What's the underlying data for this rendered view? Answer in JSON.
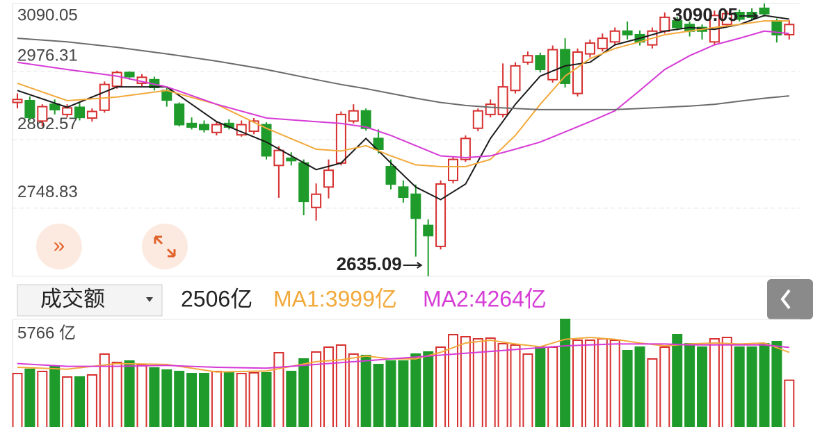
{
  "toolbar": {
    "selector": "成交额",
    "current": "2506亿",
    "ma1": "MA1:3999亿",
    "ma2": "MA2:4264亿",
    "ma1_color": "#f2a93b",
    "ma2_color": "#d63bd6"
  },
  "chart_data": [
    {
      "type": "candlestick",
      "up_color": "#d6302f",
      "down_color": "#1f9b2b",
      "grid": true,
      "ylim": [
        2635.09,
        3090.05
      ],
      "yticks": [
        3090.05,
        2976.31,
        2862.57,
        2748.83
      ],
      "open": [
        2925,
        2928,
        2894,
        2922,
        2905,
        2917,
        2899,
        2912,
        2952,
        2975,
        2957,
        2963,
        2945,
        2922,
        2890,
        2888,
        2875,
        2890,
        2871,
        2877,
        2888,
        2820,
        2832,
        2824,
        2750,
        2784,
        2824,
        2894,
        2911,
        2865,
        2818,
        2784,
        2772,
        2720,
        2685,
        2795,
        2830,
        2882,
        2905,
        2905,
        2945,
        2992,
        3003,
        2963,
        3013,
        2940,
        3006,
        3015,
        3026,
        3044,
        3038,
        3021,
        3044,
        3061,
        3055,
        3050,
        3026,
        3055,
        3075,
        3075,
        3082,
        3061,
        3038
      ],
      "close": [
        2930,
        2900,
        2918,
        2913,
        2916,
        2900,
        2910,
        2955,
        2975,
        2968,
        2967,
        2950,
        2929,
        2888,
        2884,
        2880,
        2888,
        2884,
        2888,
        2894,
        2836,
        2845,
        2828,
        2760,
        2772,
        2812,
        2905,
        2911,
        2882,
        2847,
        2789,
        2767,
        2732,
        2703,
        2789,
        2830,
        2865,
        2911,
        2922,
        2951,
        2986,
        3003,
        2980,
        3013,
        2957,
        3009,
        3024,
        3032,
        3044,
        3038,
        3026,
        3044,
        3067,
        3050,
        3044,
        3044,
        3070,
        3073,
        3064,
        3067,
        3073,
        3038,
        3055
      ],
      "high": [
        2940,
        2935,
        2922,
        2930,
        2922,
        2924,
        2915,
        2960,
        2978,
        2977,
        2972,
        2968,
        2950,
        2925,
        2900,
        2895,
        2893,
        2897,
        2895,
        2899,
        2892,
        2852,
        2842,
        2830,
        2790,
        2830,
        2910,
        2922,
        2915,
        2880,
        2830,
        2795,
        2788,
        2730,
        2795,
        2835,
        2870,
        2915,
        2930,
        2990,
        2992,
        3010,
        3008,
        3020,
        3032,
        3015,
        3030,
        3040,
        3050,
        3060,
        3045,
        3050,
        3075,
        3068,
        3060,
        3055,
        3078,
        3078,
        3080,
        3082,
        3090.05,
        3065,
        3062
      ],
      "low": [
        2915,
        2895,
        2885,
        2905,
        2900,
        2895,
        2893,
        2908,
        2948,
        2963,
        2952,
        2945,
        2918,
        2885,
        2880,
        2875,
        2870,
        2880,
        2868,
        2872,
        2830,
        2766,
        2820,
        2737,
        2728,
        2765,
        2820,
        2890,
        2878,
        2840,
        2780,
        2758,
        2668,
        2635.09,
        2680,
        2790,
        2826,
        2877,
        2900,
        2900,
        2940,
        2988,
        2975,
        2958,
        2950,
        2935,
        3000,
        3010,
        3020,
        3030,
        3020,
        3015,
        3040,
        3045,
        3035,
        3030,
        3020,
        3050,
        3060,
        3062,
        3068,
        3025,
        3030
      ],
      "ma": [
        {
          "color": "#1a1a1a",
          "x": [
            0,
            4,
            8,
            12,
            16,
            20,
            24,
            26,
            28,
            30,
            32,
            34,
            36,
            38,
            40,
            42,
            44,
            46,
            48,
            50,
            52,
            54,
            56,
            58,
            60,
            62
          ],
          "values": [
            2945,
            2917,
            2951,
            2951,
            2893,
            2859,
            2813,
            2824,
            2865,
            2824,
            2784,
            2763,
            2789,
            2865,
            2922,
            2969,
            2986,
            2992,
            3021,
            3032,
            3044,
            3050,
            3047,
            3055,
            3070,
            3064
          ]
        },
        {
          "color": "#f2a93b",
          "x": [
            0,
            4,
            8,
            12,
            16,
            20,
            24,
            26,
            28,
            30,
            32,
            34,
            36,
            38,
            40,
            42,
            44,
            46,
            48,
            50,
            52,
            54,
            56,
            58,
            60,
            62
          ],
          "values": [
            2957,
            2928,
            2934,
            2945,
            2922,
            2882,
            2847,
            2844,
            2853,
            2836,
            2821,
            2818,
            2818,
            2830,
            2870,
            2922,
            2969,
            2998,
            3015,
            3026,
            3038,
            3044,
            3050,
            3055,
            3061,
            3061
          ]
        },
        {
          "color": "#d63bd6",
          "x": [
            0,
            4,
            8,
            12,
            16,
            20,
            24,
            26,
            28,
            30,
            32,
            34,
            36,
            38,
            40,
            42,
            44,
            46,
            48,
            50,
            52,
            54,
            56,
            58,
            60,
            62
          ],
          "values": [
            2992,
            2980,
            2969,
            2951,
            2922,
            2899,
            2893,
            2890,
            2884,
            2870,
            2853,
            2836,
            2833,
            2836,
            2847,
            2859,
            2876,
            2893,
            2911,
            2945,
            2980,
            3003,
            3021,
            3032,
            3044,
            3040
          ]
        },
        {
          "color": "#6b6b6b",
          "x": [
            0,
            4,
            8,
            12,
            16,
            20,
            24,
            26,
            28,
            30,
            32,
            34,
            36,
            38,
            40,
            42,
            44,
            46,
            48,
            50,
            52,
            54,
            56,
            58,
            60,
            62
          ],
          "values": [
            3032,
            3026,
            3017,
            3006,
            2994,
            2980,
            2963,
            2955,
            2948,
            2940,
            2932,
            2925,
            2920,
            2917,
            2915,
            2913,
            2913,
            2913,
            2913,
            2915,
            2917,
            2919,
            2922,
            2927,
            2932,
            2936
          ]
        }
      ],
      "annotations": [
        {
          "label": "3090.05",
          "value": 3090.05
        },
        {
          "label": "2635.09",
          "value": 2635.09
        }
      ]
    },
    {
      "type": "volume",
      "ylim": [
        0,
        5766
      ],
      "yticks": [
        {
          "value": 5766,
          "label": "5766 亿"
        }
      ],
      "values": [
        2864,
        3088,
        2976,
        3236,
        2678,
        2678,
        2790,
        3906,
        3460,
        3534,
        3348,
        3162,
        3050,
        2976,
        2864,
        2864,
        2976,
        2902,
        2864,
        2902,
        2902,
        3980,
        2976,
        3646,
        4018,
        4278,
        4390,
        3906,
        3832,
        3348,
        3534,
        3534,
        3906,
        4018,
        4278,
        4948,
        4836,
        4724,
        4762,
        4464,
        4390,
        3906,
        4278,
        4278,
        5766,
        4650,
        4650,
        4724,
        4650,
        4092,
        4278,
        3646,
        4278,
        4948,
        4464,
        4278,
        4724,
        4799,
        4278,
        4278,
        4464,
        4576,
        2506
      ],
      "ma": [
        {
          "color": "#f2a93b",
          "x": [
            0,
            4,
            8,
            12,
            16,
            20,
            24,
            26,
            28,
            30,
            32,
            34,
            36,
            38,
            40,
            42,
            44,
            46,
            48,
            50,
            52,
            54,
            56,
            58,
            60,
            62
          ],
          "values": [
            3200,
            3100,
            3400,
            3350,
            2950,
            3000,
            3500,
            3600,
            3800,
            3650,
            3650,
            4000,
            4500,
            4650,
            4450,
            4300,
            4700,
            4800,
            4700,
            4500,
            4350,
            4450,
            4500,
            4450,
            4500,
            3999
          ]
        },
        {
          "color": "#d63bd6",
          "x": [
            0,
            4,
            8,
            12,
            16,
            20,
            24,
            26,
            28,
            30,
            32,
            34,
            36,
            38,
            40,
            42,
            44,
            46,
            48,
            50,
            52,
            54,
            56,
            58,
            60,
            62
          ],
          "values": [
            3400,
            3250,
            3250,
            3300,
            3200,
            3150,
            3350,
            3450,
            3550,
            3650,
            3750,
            3850,
            3950,
            4050,
            4150,
            4250,
            4350,
            4400,
            4450,
            4450,
            4450,
            4400,
            4400,
            4400,
            4400,
            4264
          ]
        }
      ]
    }
  ]
}
